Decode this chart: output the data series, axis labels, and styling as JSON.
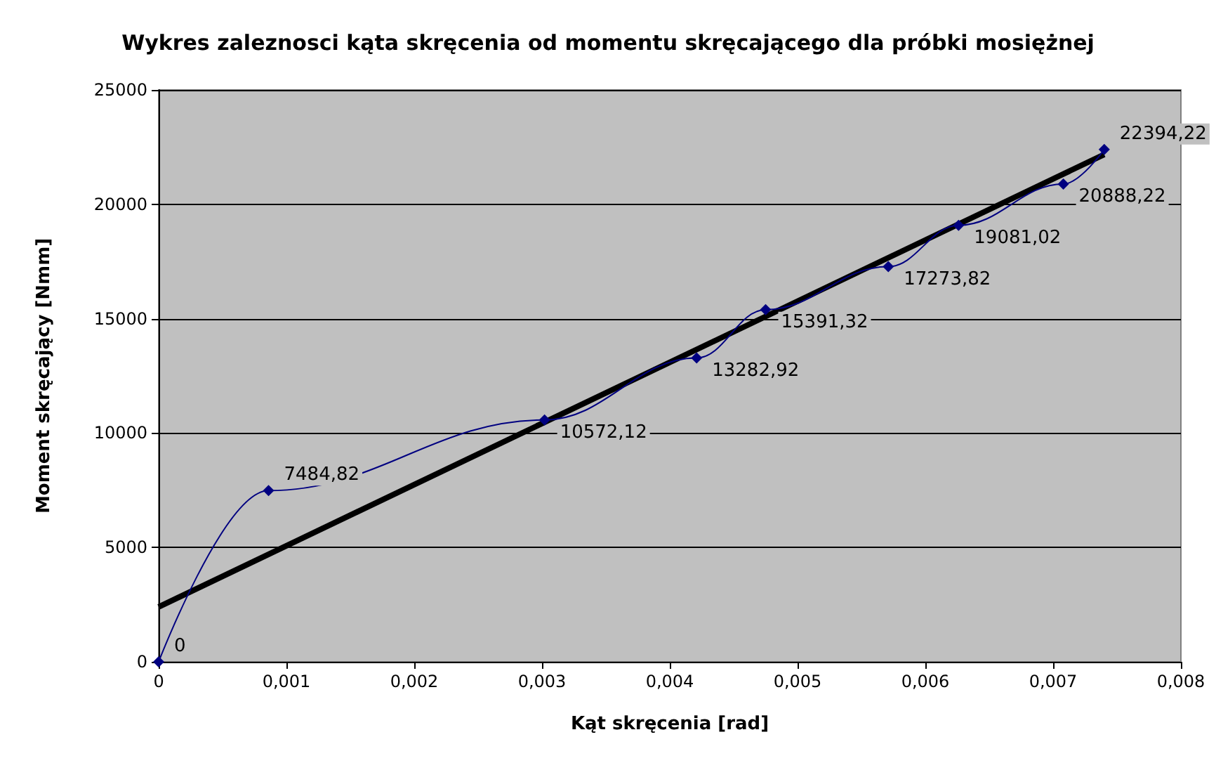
{
  "chart_data": {
    "type": "line",
    "title": "Wykres zaleznosci kąta skręcenia od momentu skręcającego dla próbki mosiężnej",
    "xlabel": "Kąt skręcenia [rad]",
    "ylabel": "Moment skręcający [Nmm]",
    "series": [
      {
        "color": "#000080",
        "marker": "diamond",
        "x": [
          0,
          0.00086,
          0.00302,
          0.00421,
          0.00475,
          0.00571,
          0.00626,
          0.00708,
          0.0074
        ],
        "values": [
          0,
          7484.82,
          10572.12,
          13282.92,
          15391.32,
          17273.82,
          19081.02,
          20888.22,
          22394.22
        ],
        "value_labels": [
          "0",
          "7484,82",
          "10572,12",
          "13282,92",
          "15391,32",
          "17273,82",
          "19081,02",
          "20888,22",
          "22394,22"
        ]
      },
      {
        "color": "#000000",
        "marker": "none",
        "x": [
          0,
          0.0074
        ],
        "values": [
          2400,
          22180
        ]
      }
    ],
    "xlim": [
      0,
      0.008
    ],
    "xticks": [
      0,
      {
        "value": 0.001,
        "label": "0,001"
      },
      {
        "value": 0.002,
        "label": "0,002"
      },
      {
        "value": 0.003,
        "label": "0,003"
      },
      {
        "value": 0.004,
        "label": "0,004"
      },
      {
        "value": 0.005,
        "label": "0,005"
      },
      {
        "value": 0.006,
        "label": "0,006"
      },
      {
        "value": 0.007,
        "label": "0,007"
      },
      {
        "value": 0.008,
        "label": "0,008"
      }
    ],
    "ylim": [
      0,
      25000
    ],
    "yticks": [
      0,
      5000,
      10000,
      15000,
      20000,
      25000
    ],
    "grid": "y"
  }
}
